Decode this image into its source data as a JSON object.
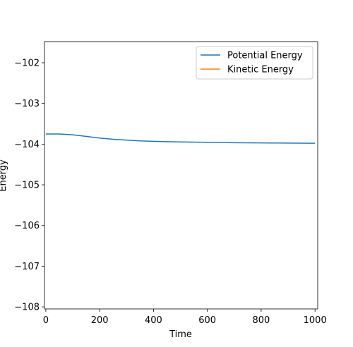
{
  "chart_data": {
    "type": "line",
    "title": "",
    "xlabel": "Time",
    "ylabel": "Energy",
    "xlim": [
      -5,
      1010
    ],
    "ylim": [
      -108.05,
      -101.48
    ],
    "xticks": [
      0,
      200,
      400,
      600,
      800,
      1000
    ],
    "yticks": [
      -102,
      -103,
      -104,
      -105,
      -106,
      -107,
      -108
    ],
    "xtick_labels": [
      "0",
      "200",
      "400",
      "600",
      "800",
      "1000"
    ],
    "ytick_labels": [
      "−102",
      "−103",
      "−104",
      "−105",
      "−106",
      "−107",
      "−108"
    ],
    "grid": false,
    "legend": {
      "location": "upper right"
    },
    "series": [
      {
        "name": "Potential Energy",
        "color": "#1f77b4",
        "x": [
          0,
          50,
          100,
          150,
          200,
          250,
          300,
          350,
          400,
          450,
          500,
          550,
          600,
          650,
          700,
          750,
          800,
          850,
          900,
          950,
          1000
        ],
        "y": [
          -103.75,
          -103.75,
          -103.77,
          -103.81,
          -103.85,
          -103.88,
          -103.9,
          -103.92,
          -103.93,
          -103.94,
          -103.945,
          -103.95,
          -103.955,
          -103.96,
          -103.965,
          -103.967,
          -103.97,
          -103.972,
          -103.974,
          -103.976,
          -103.978
        ]
      },
      {
        "name": "Kinetic Energy",
        "color": "#ff7f0e",
        "x": [],
        "y": []
      }
    ]
  }
}
